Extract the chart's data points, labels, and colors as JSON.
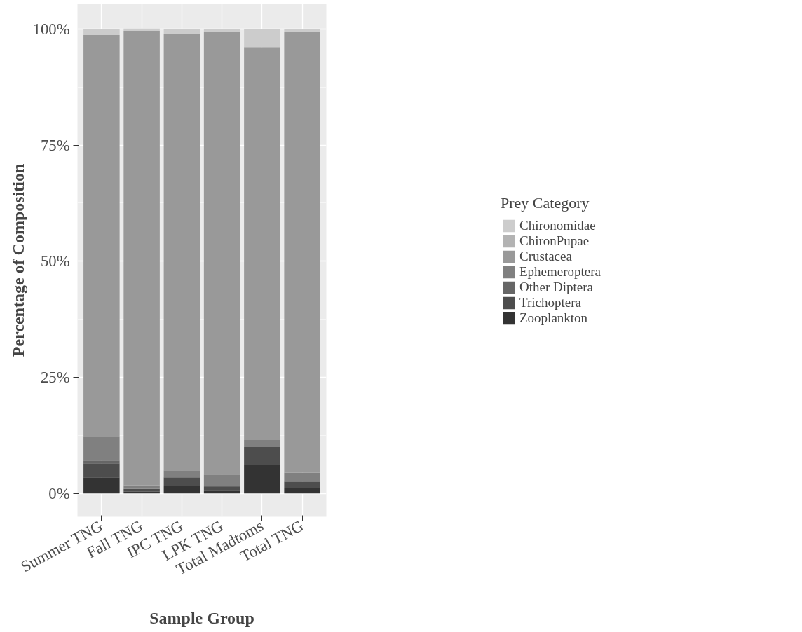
{
  "chart_data": {
    "type": "bar",
    "stacked": true,
    "xlabel": "Sample Group",
    "ylabel": "Percentage of Composition",
    "legend_title": "Prey Category",
    "legend": "right",
    "grid": true,
    "categories": [
      "Summer TNG",
      "Fall TNG",
      "IPC TNG",
      "LPK TNG",
      "Total Madtoms",
      "Total TNG"
    ],
    "ylim": [
      -5,
      105.4
    ],
    "yticks": [
      {
        "value": 0,
        "label": "0%"
      },
      {
        "value": 25,
        "label": "25%"
      },
      {
        "value": 50,
        "label": "50%"
      },
      {
        "value": 75,
        "label": "75%"
      },
      {
        "value": 100,
        "label": "100%"
      }
    ],
    "series": [
      {
        "name": "Zooplankton",
        "color": "#333333",
        "values": [
          3.5,
          0.4,
          1.7,
          0.6,
          6.2,
          1.2
        ]
      },
      {
        "name": "Trichoptera",
        "color": "#4d4d4d",
        "values": [
          3.0,
          0.6,
          1.8,
          0.8,
          3.8,
          1.3
        ]
      },
      {
        "name": "Other Diptera",
        "color": "#666666",
        "values": [
          0.6,
          0,
          0,
          0.3,
          0,
          0.2
        ]
      },
      {
        "name": "Ephemeroptera",
        "color": "#808080",
        "values": [
          5.1,
          0.8,
          1.5,
          2.4,
          1.5,
          1.8
        ]
      },
      {
        "name": "Crustacea",
        "color": "#999999",
        "values": [
          86.5,
          97.8,
          93.9,
          95.2,
          84.6,
          94.8
        ]
      },
      {
        "name": "ChironPupae",
        "color": "#b3b3b3",
        "values": [
          0,
          0,
          0,
          0,
          0,
          0
        ]
      },
      {
        "name": "Chironomidae",
        "color": "#cccccc",
        "values": [
          1.3,
          0.5,
          1.1,
          0.7,
          3.9,
          0.7
        ]
      }
    ]
  }
}
